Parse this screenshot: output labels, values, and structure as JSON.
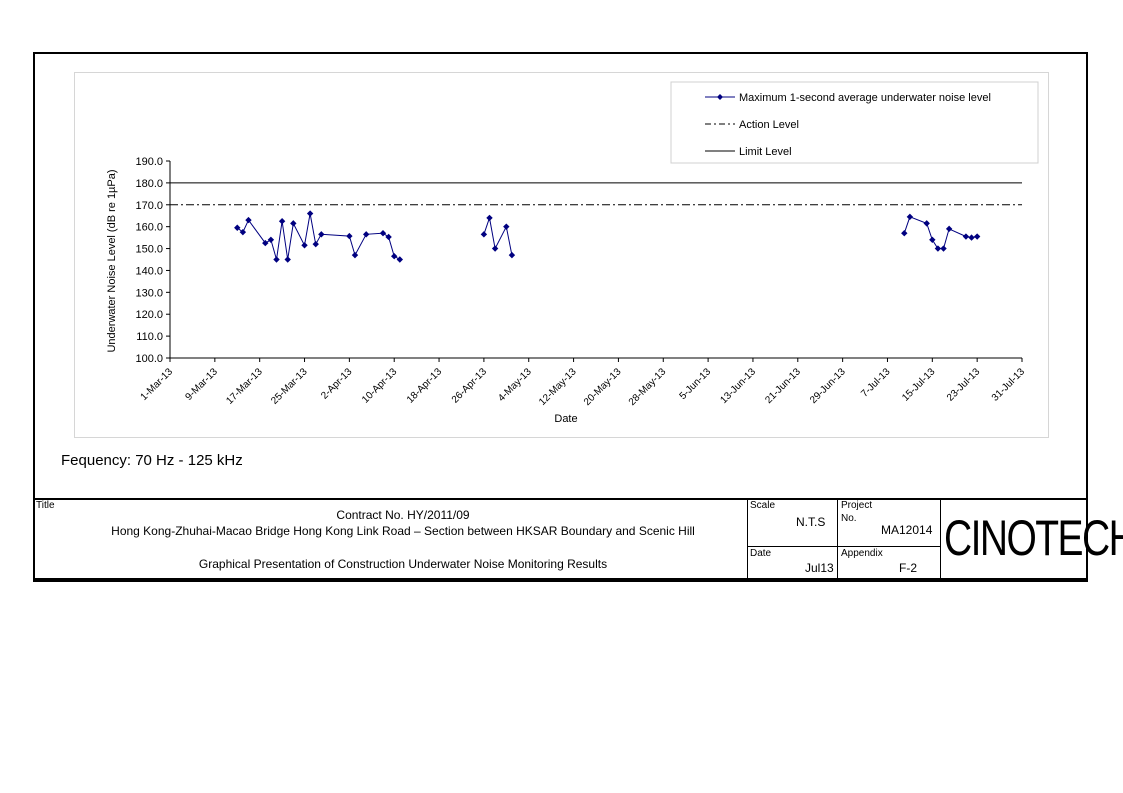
{
  "chart_data": {
    "type": "line",
    "ylabel": "Underwater Noise Level (dB re 1µPa)",
    "xlabel": "Date",
    "ylim": [
      100,
      190
    ],
    "y_ticks": [
      "100.0",
      "110.0",
      "120.0",
      "130.0",
      "140.0",
      "150.0",
      "160.0",
      "170.0",
      "180.0",
      "190.0"
    ],
    "x_range": [
      "2013-03-01",
      "2013-07-31"
    ],
    "x_tick_labels": [
      "1-Mar-13",
      "9-Mar-13",
      "17-Mar-13",
      "25-Mar-13",
      "2-Apr-13",
      "10-Apr-13",
      "18-Apr-13",
      "26-Apr-13",
      "4-May-13",
      "12-May-13",
      "20-May-13",
      "28-May-13",
      "5-Jun-13",
      "13-Jun-13",
      "21-Jun-13",
      "29-Jun-13",
      "7-Jul-13",
      "15-Jul-13",
      "23-Jul-13",
      "31-Jul-13"
    ],
    "x_tick_dates": [
      "2013-03-01",
      "2013-03-09",
      "2013-03-17",
      "2013-03-25",
      "2013-04-02",
      "2013-04-10",
      "2013-04-18",
      "2013-04-26",
      "2013-05-04",
      "2013-05-12",
      "2013-05-20",
      "2013-05-28",
      "2013-06-05",
      "2013-06-13",
      "2013-06-21",
      "2013-06-29",
      "2013-07-07",
      "2013-07-15",
      "2013-07-23",
      "2013-07-31"
    ],
    "grid": false,
    "legend_position": "top-right",
    "series": [
      {
        "name": "Maximum 1-second average underwater noise level",
        "color": "#000080",
        "marker": "diamond",
        "segments": [
          {
            "x": [
              "2013-03-13",
              "2013-03-14",
              "2013-03-15",
              "2013-03-18",
              "2013-03-19",
              "2013-03-20",
              "2013-03-21",
              "2013-03-22",
              "2013-03-23",
              "2013-03-25",
              "2013-03-26",
              "2013-03-27",
              "2013-03-28",
              "2013-04-02",
              "2013-04-03",
              "2013-04-05",
              "2013-04-08",
              "2013-04-09",
              "2013-04-10",
              "2013-04-11"
            ],
            "y": [
              159.5,
              157.5,
              163,
              152.5,
              154,
              145,
              162.5,
              145,
              161.5,
              151.5,
              166,
              152,
              156.5,
              155.7,
              147,
              156.5,
              157,
              155.3,
              146.5,
              145
            ]
          },
          {
            "x": [
              "2013-04-26",
              "2013-04-27",
              "2013-04-28",
              "2013-04-30",
              "2013-05-01"
            ],
            "y": [
              156.5,
              164,
              150,
              160,
              147
            ]
          },
          {
            "x": [
              "2013-07-10",
              "2013-07-11",
              "2013-07-14",
              "2013-07-15",
              "2013-07-16",
              "2013-07-17",
              "2013-07-18",
              "2013-07-21",
              "2013-07-22",
              "2013-07-23"
            ],
            "y": [
              157,
              164.5,
              161.5,
              154,
              150,
              150,
              159,
              155.5,
              155,
              155.5
            ]
          }
        ]
      },
      {
        "name": "Action Level",
        "value": 170,
        "style": "dash-dot",
        "color": "#000000"
      },
      {
        "name": "Limit Level",
        "value": 180,
        "style": "solid",
        "color": "#000000"
      }
    ]
  },
  "frequency_note": "Fequency: 70 Hz - 125 kHz",
  "title_block": {
    "title_label": "Title",
    "contract": "Contract No. HY/2011/09",
    "project_name": "Hong Kong-Zhuhai-Macao Bridge Hong Kong Link Road – Section between HKSAR Boundary and Scenic Hill",
    "drawing_title": "Graphical Presentation of Construction Underwater Noise Monitoring Results",
    "scale_label": "Scale",
    "scale_value": "N.T.S",
    "project_label": "Project",
    "project_no_label": "No.",
    "project_value": "MA12014",
    "date_label": "Date",
    "date_value": "Jul13",
    "appendix_label": "Appendix",
    "appendix_value": "F-2",
    "logo_text": "CINOTECH"
  }
}
